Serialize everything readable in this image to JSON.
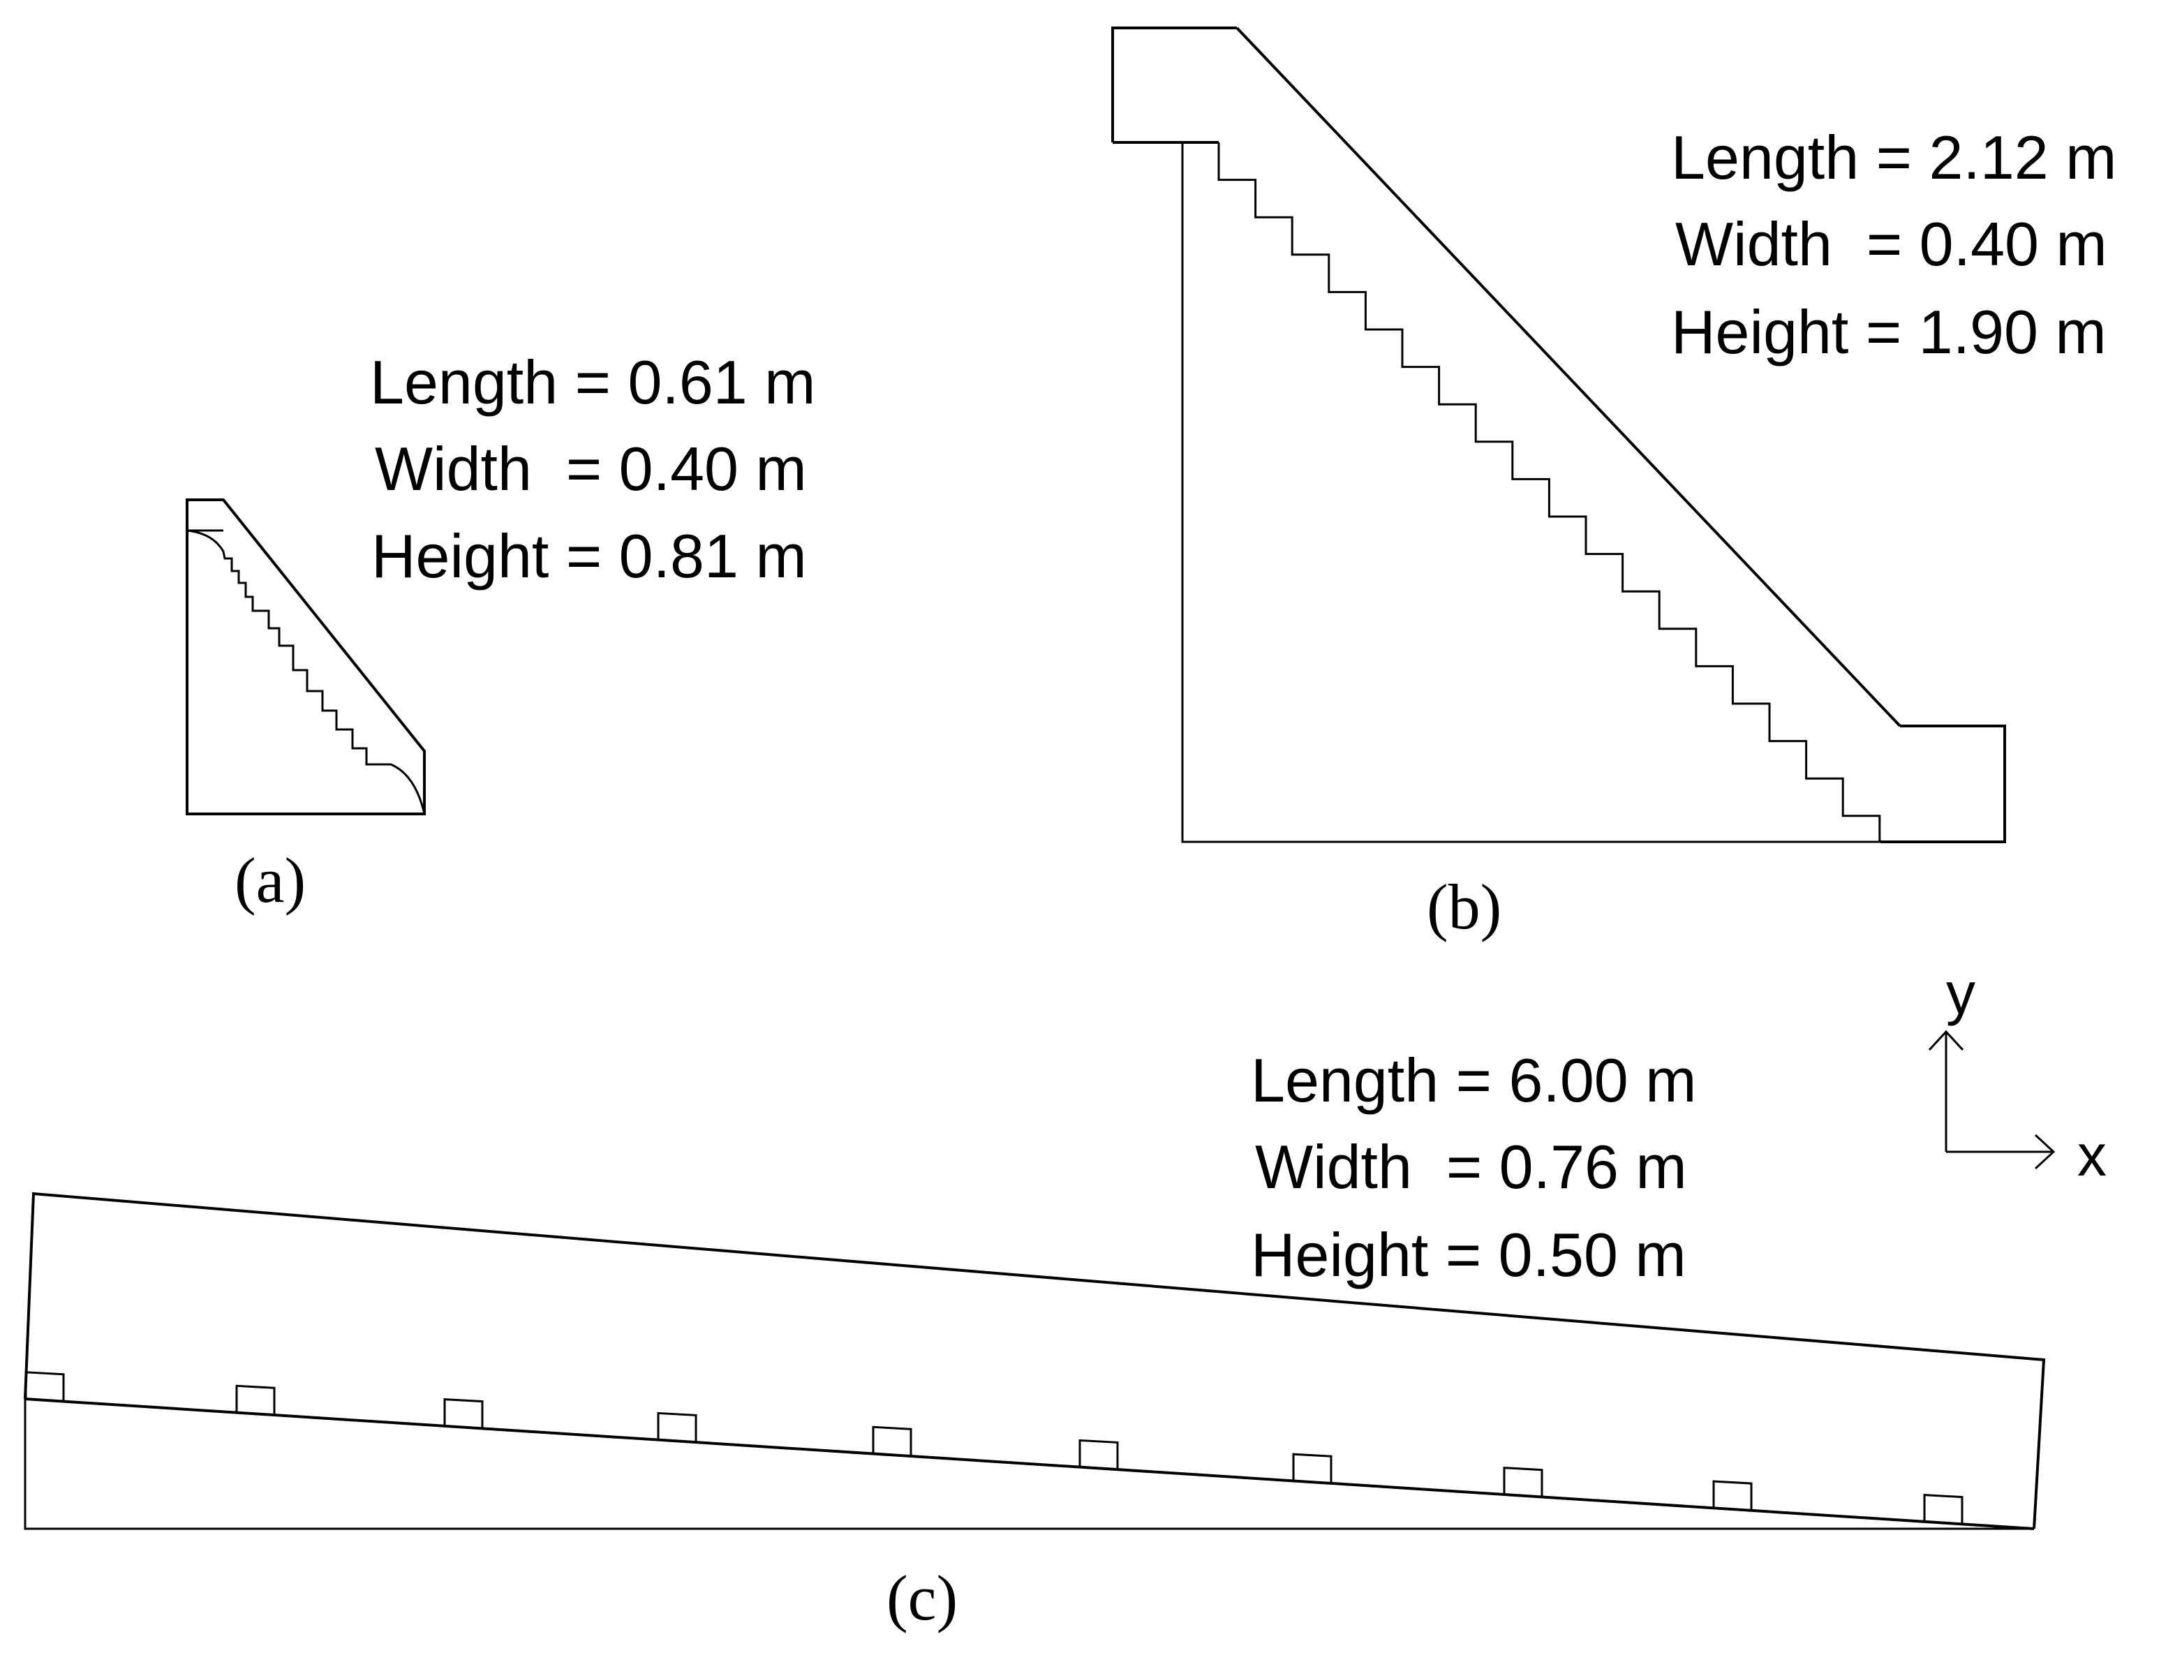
{
  "panel_a": {
    "caption": "(a)",
    "length": "Length = 0.61 m",
    "width": "Width  = 0.40 m",
    "height": "Height = 0.81 m"
  },
  "panel_b": {
    "caption": "(b)",
    "length": "Length = 2.12 m",
    "width": "Width  = 0.40 m",
    "height": "Height = 1.90 m"
  },
  "panel_c": {
    "caption": "(c)",
    "length": "Length = 6.00 m",
    "width": "Width  = 0.76 m",
    "height": "Height = 0.50 m"
  },
  "axes": {
    "x_label": "x",
    "y_label": "y"
  }
}
